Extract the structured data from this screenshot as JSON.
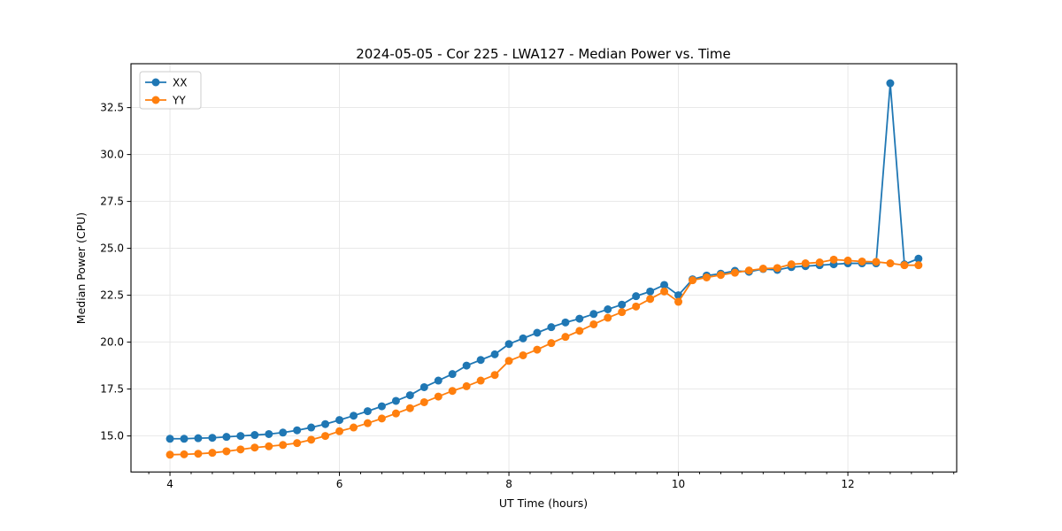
{
  "figure": {
    "title": "2024-05-05 - Cor 225 - LWA127 - Median Power vs. Time",
    "xlabel": "UT Time (hours)",
    "ylabel": "Median Power (CPU)",
    "background_color": "#ffffff",
    "spine_color": "#000000",
    "text_color": "#000000"
  },
  "legend": {
    "entries": [
      {
        "label": "XX",
        "color": "#1f77b4"
      },
      {
        "label": "YY",
        "color": "#ff7f0e"
      }
    ],
    "position": "upper-left"
  },
  "chart_data": {
    "type": "line",
    "title": "2024-05-05 - Cor 225 - LWA127 - Median Power vs. Time",
    "xlabel": "UT Time (hours)",
    "ylabel": "Median Power (CPU)",
    "xlim": [
      3.54,
      13.284
    ],
    "ylim": [
      13.08,
      34.84
    ],
    "x_ticks": [
      4,
      6,
      8,
      10,
      12
    ],
    "x_minor_tick_step": 0.25,
    "y_ticks": [
      15.0,
      17.5,
      20.0,
      22.5,
      25.0,
      27.5,
      30.0,
      32.5
    ],
    "grid": true,
    "grid_color": "#e6e6e6",
    "marker": "circle",
    "marker_size": 9,
    "line_width": 1.8,
    "legend_position": "upper-left",
    "x": [
      4.0,
      4.167,
      4.333,
      4.5,
      4.667,
      4.833,
      5.0,
      5.167,
      5.333,
      5.5,
      5.667,
      5.833,
      6.0,
      6.167,
      6.333,
      6.5,
      6.667,
      6.833,
      7.0,
      7.167,
      7.333,
      7.5,
      7.667,
      7.833,
      8.0,
      8.167,
      8.333,
      8.5,
      8.667,
      8.833,
      9.0,
      9.167,
      9.333,
      9.5,
      9.667,
      9.833,
      10.0,
      10.167,
      10.333,
      10.5,
      10.667,
      10.833,
      11.0,
      11.167,
      11.333,
      11.5,
      11.667,
      11.833,
      12.0,
      12.167,
      12.333,
      12.5,
      12.667,
      12.833
    ],
    "series": [
      {
        "name": "XX",
        "color": "#1f77b4",
        "values": [
          14.85,
          14.85,
          14.88,
          14.9,
          14.95,
          15.0,
          15.05,
          15.1,
          15.18,
          15.3,
          15.45,
          15.63,
          15.85,
          16.08,
          16.32,
          16.58,
          16.87,
          17.17,
          17.6,
          17.95,
          18.3,
          18.75,
          19.05,
          19.35,
          19.9,
          20.2,
          20.5,
          20.8,
          21.05,
          21.25,
          21.5,
          21.75,
          22.0,
          22.45,
          22.7,
          23.05,
          22.5,
          23.35,
          23.55,
          23.65,
          23.8,
          23.75,
          23.9,
          23.85,
          24.0,
          24.05,
          24.1,
          24.15,
          24.2,
          24.2,
          24.2,
          33.8,
          24.15,
          24.45
        ]
      },
      {
        "name": "YY",
        "color": "#ff7f0e",
        "values": [
          14.0,
          14.02,
          14.05,
          14.1,
          14.18,
          14.28,
          14.38,
          14.45,
          14.52,
          14.62,
          14.8,
          15.0,
          15.25,
          15.45,
          15.68,
          15.93,
          16.2,
          16.48,
          16.8,
          17.1,
          17.4,
          17.65,
          17.95,
          18.25,
          19.0,
          19.3,
          19.6,
          19.95,
          20.28,
          20.6,
          20.95,
          21.3,
          21.6,
          21.9,
          22.3,
          22.7,
          22.15,
          23.3,
          23.45,
          23.58,
          23.7,
          23.82,
          23.92,
          23.95,
          24.15,
          24.2,
          24.25,
          24.4,
          24.35,
          24.3,
          24.28,
          24.2,
          24.1,
          24.1
        ]
      }
    ]
  }
}
